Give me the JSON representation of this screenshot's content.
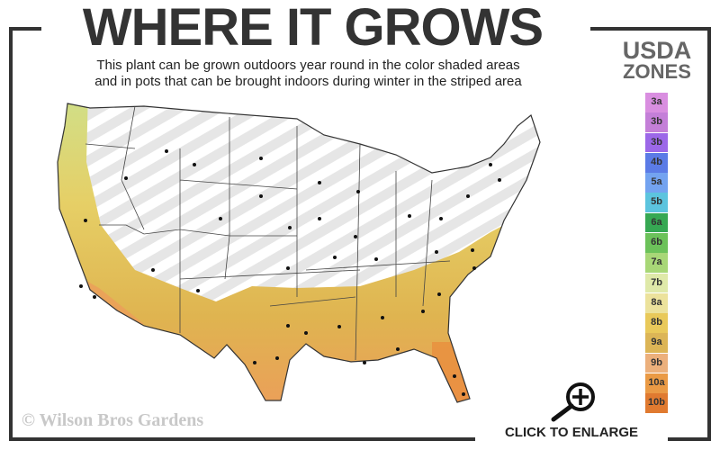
{
  "header": {
    "title": "WHERE IT GROWS",
    "subtitle_line1": "This plant can be grown outdoors year round in the color shaded areas",
    "subtitle_line2": "and in pots that can be brought indoors during winter in the striped area"
  },
  "legend": {
    "title_line1": "USDA",
    "title_line2": "ZONES",
    "zones": [
      {
        "label": "3a",
        "color": "#d98ee0"
      },
      {
        "label": "3b",
        "color": "#c47fd8"
      },
      {
        "label": "3b",
        "color": "#9c68e8"
      },
      {
        "label": "4b",
        "color": "#5b7be6"
      },
      {
        "label": "5a",
        "color": "#73a3f0"
      },
      {
        "label": "5b",
        "color": "#5cc4de"
      },
      {
        "label": "6a",
        "color": "#36a853"
      },
      {
        "label": "6b",
        "color": "#6cc25a"
      },
      {
        "label": "7a",
        "color": "#a8d777"
      },
      {
        "label": "7b",
        "color": "#dfe9a9"
      },
      {
        "label": "8a",
        "color": "#ece29c"
      },
      {
        "label": "8b",
        "color": "#e9c95a"
      },
      {
        "label": "9a",
        "color": "#dcb556"
      },
      {
        "label": "9b",
        "color": "#ecb07c"
      },
      {
        "label": "10a",
        "color": "#ea9a45"
      },
      {
        "label": "10b",
        "color": "#e07a30"
      }
    ]
  },
  "watermark": "© Wilson Bros Gardens",
  "enlarge": {
    "label": "CLICK TO ENLARGE",
    "icon": "magnifier-plus-icon"
  }
}
